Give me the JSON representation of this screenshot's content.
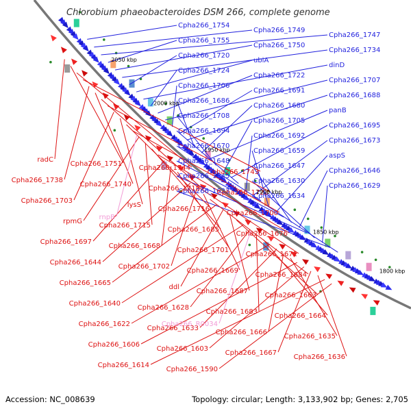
{
  "title": "Chlorobium phaeobacteroides DSM 266, complete genome",
  "footer": {
    "accession": "Accession: NC_008639",
    "summary": "Topology: circular; Length: 3,133,902 bp; Genes: 2,705"
  },
  "colors": {
    "forward": "#1f1fdd",
    "reverse": "#dd1111",
    "rna": "#f29bd6",
    "backbone": "#777777",
    "tick_dot": "#2a8a2a"
  },
  "ticks": [
    {
      "label": "2050 kbp"
    },
    {
      "label": "2000 kbp"
    },
    {
      "label": "1950 kbp"
    },
    {
      "label": "1900 kbp"
    },
    {
      "label": "1850 kbp"
    },
    {
      "label": "1800 kbp"
    }
  ],
  "forward_genes": [
    "Cpha266_1754",
    "Cpha266_1749",
    "Cpha266_1747",
    "Cpha266_1755",
    "Cpha266_1750",
    "Cpha266_1734",
    "Cpha266_1720",
    "ubiA",
    "dinD",
    "Cpha266_1724",
    "Cpha266_1722",
    "Cpha266_1707",
    "Cpha266_1706",
    "Cpha266_1691",
    "Cpha266_1688",
    "Cpha266_1686",
    "Cpha266_1680",
    "panB",
    "Cpha266_1708",
    "Cpha266_1705",
    "Cpha266_1695",
    "Cpha266_1694",
    "Cpha266_1692",
    "Cpha266_1673",
    "Cpha266_1670",
    "Cpha266_1659",
    "aspS",
    "Cpha266_1648",
    "Cpha266_1647",
    "Cpha266_1646",
    "Cpha266_1645",
    "Cpha266_1630",
    "Cpha266_1629",
    "Cpha266_1623",
    "Cpha266_1634"
  ],
  "reverse_genes": [
    "radC",
    "Cpha266_1751",
    "Cpha266_1744",
    "Cpha266_1743",
    "Cpha266_1738",
    "Cpha266_1740",
    "Cpha266_1718",
    "Cpha266_1723",
    "Cpha266_1703",
    "lysS",
    "Cpha266_1716",
    "Cpha266_1700",
    "rpmG",
    "Cpha266_1715",
    "Cpha266_1685",
    "Cpha266_1676",
    "Cpha266_1697",
    "Cpha266_1668",
    "Cpha266_1701",
    "Cpha266_1671",
    "Cpha266_1644",
    "Cpha266_1702",
    "Cpha266_1669",
    "Cpha266_1684",
    "Cpha266_1665",
    "ddl",
    "Cpha266_1687",
    "Cpha266_1663",
    "Cpha266_1640",
    "Cpha266_1628",
    "Cpha266_1683",
    "Cpha266_1664",
    "Cpha266_1622",
    "Cpha266_1633",
    "Cpha266_1666",
    "Cpha266_1635",
    "Cpha266_1606",
    "Cpha266_1603",
    "Cpha266_1667",
    "Cpha266_1636",
    "Cpha266_1614",
    "Cpha266_1590"
  ],
  "rna_genes": [
    "rnpB",
    "Cpha266_R0034"
  ]
}
